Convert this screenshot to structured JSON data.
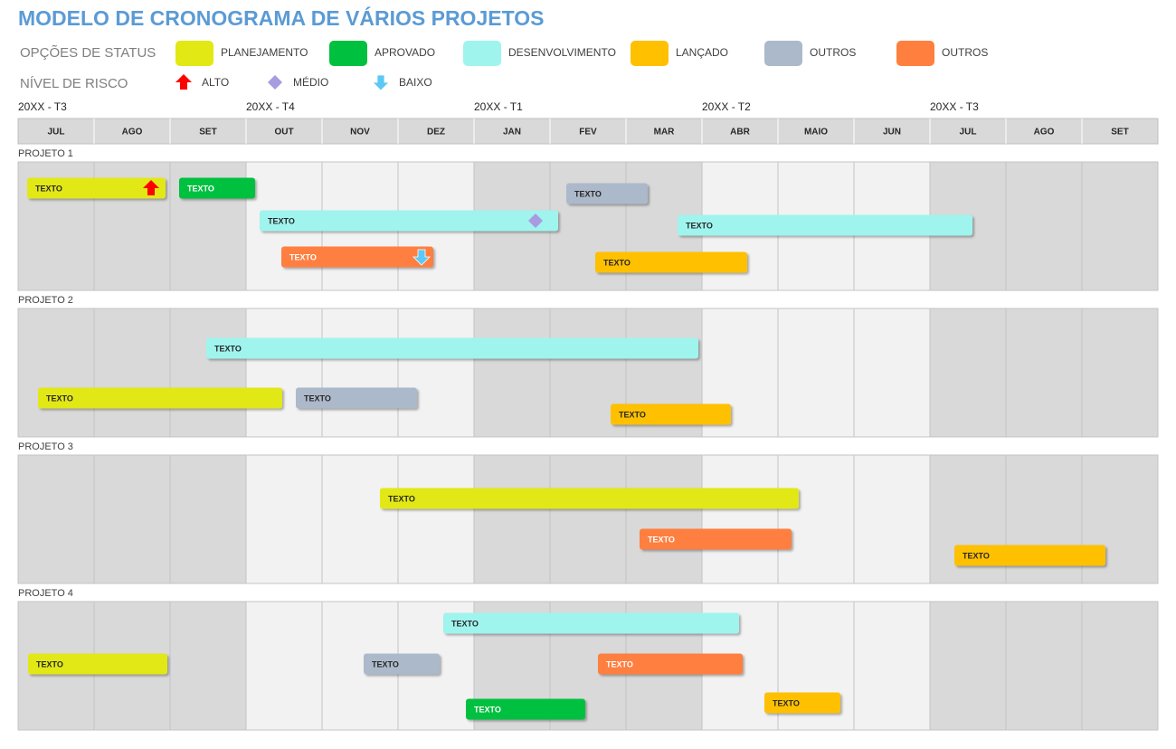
{
  "title": "MODELO DE CRONOGRAMA DE VÁRIOS PROJETOS",
  "status": {
    "label": "OPÇÕES DE STATUS",
    "options": [
      {
        "name": "PLANEJAMENTO",
        "color": "#e2e814"
      },
      {
        "name": "APROVADO",
        "color": "#00c040"
      },
      {
        "name": "DESENVOLVIMENTO",
        "color": "#a0f4ee"
      },
      {
        "name": "LANÇADO",
        "color": "#ffc000"
      },
      {
        "name": "OUTROS",
        "color": "#acb9ca"
      },
      {
        "name": "OUTROS",
        "color": "#ff7f3f"
      }
    ]
  },
  "risk": {
    "label": "NÍVEL DE RISCO",
    "levels": [
      {
        "name": "ALTO",
        "color": "#ff0000"
      },
      {
        "name": "MÉDIO",
        "color": "#a89be0"
      },
      {
        "name": "BAIXO",
        "color": "#5bc8f5"
      }
    ]
  },
  "quarters": [
    "20XX - T3",
    "20XX - T4",
    "20XX - T1",
    "20XX - T2",
    "20XX - T3"
  ],
  "months": [
    "JUL",
    "AGO",
    "SET",
    "OUT",
    "NOV",
    "DEZ",
    "JAN",
    "FEV",
    "MAR",
    "ABR",
    "MAIO",
    "JUN",
    "JUL",
    "AGO",
    "SET"
  ],
  "projects": [
    {
      "name": "PROJETO 1",
      "tasks": [
        {
          "label": "TEXTO",
          "color": "#e2e814"
        },
        {
          "label": "TEXTO",
          "color": "#00c040"
        },
        {
          "label": "TEXTO",
          "color": "#acb9ca"
        },
        {
          "label": "TEXTO",
          "color": "#a0f4ee"
        },
        {
          "label": "TEXTO",
          "color": "#a0f4ee"
        },
        {
          "label": "TEXTO",
          "color": "#ff7f3f"
        },
        {
          "label": "TEXTO",
          "color": "#ffc000"
        }
      ]
    },
    {
      "name": "PROJETO 2",
      "tasks": [
        {
          "label": "TEXTO",
          "color": "#a0f4ee"
        },
        {
          "label": "TEXTO",
          "color": "#e2e814"
        },
        {
          "label": "TEXTO",
          "color": "#acb9ca"
        },
        {
          "label": "TEXTO",
          "color": "#ffc000"
        }
      ]
    },
    {
      "name": "PROJETO 3",
      "tasks": [
        {
          "label": "TEXTO",
          "color": "#e2e814"
        },
        {
          "label": "TEXTO",
          "color": "#ff7f3f"
        },
        {
          "label": "TEXTO",
          "color": "#ffc000"
        }
      ]
    },
    {
      "name": "PROJETO 4",
      "tasks": [
        {
          "label": "TEXTO",
          "color": "#a0f4ee"
        },
        {
          "label": "TEXTO",
          "color": "#e2e814"
        },
        {
          "label": "TEXTO",
          "color": "#acb9ca"
        },
        {
          "label": "TEXTO",
          "color": "#ff7f3f"
        },
        {
          "label": "TEXTO",
          "color": "#ffc000"
        },
        {
          "label": "TEXTO",
          "color": "#00c040"
        }
      ]
    }
  ]
}
